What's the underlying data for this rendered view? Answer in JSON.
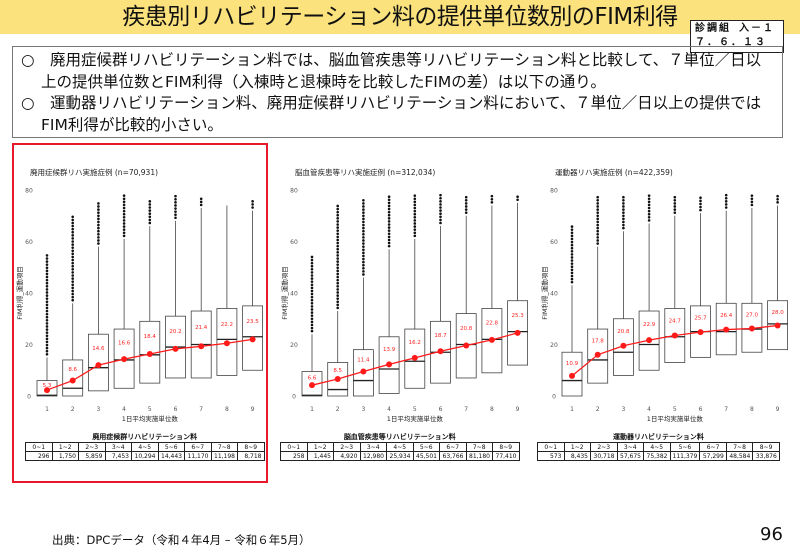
{
  "title": "疾患別リハビリテーション料の提供単位数別のFIM利得",
  "badge": {
    "line1": "診調組 入－１",
    "line2": "７．６．１３"
  },
  "bullets": [
    "○　廃用症候群リハビリテーション料では、脳血管疾患等リハビリテーション料と比較して、７単位／日以上の提供単位数とFIM利得（入棟時と退棟時を比較したFIMの差）は以下の通り。",
    "○　運動器リハビリテーション料、廃用症候群リハビリテーション料において、７単位／日以上の提供ではFIM利得が比較的小さい。"
  ],
  "highlight_color": "#e8182a",
  "mean_color": "#ff1a1a",
  "footer": "出典：DPCデータ（令和４年4月 – 令和６年5月）",
  "page_number": "96",
  "chart_data": [
    {
      "type": "box",
      "title": "廃用症候群リハ実施症例 (n=70,931)",
      "xlabel": "1日平均実施単位数",
      "ylabel": "FIM利得_運動項目",
      "ylim": [
        0,
        80
      ],
      "yticks": [
        0,
        20,
        40,
        60,
        80
      ],
      "categories": [
        "1",
        "2",
        "3",
        "4",
        "5",
        "6",
        "7",
        "8",
        "9"
      ],
      "boxes": [
        [
          0,
          0,
          0.3,
          6,
          15,
          55
        ],
        [
          0,
          0,
          3,
          14,
          36,
          70
        ],
        [
          2,
          2,
          11,
          24,
          58,
          75
        ],
        [
          3,
          3,
          14,
          26,
          61,
          78
        ],
        [
          5,
          5,
          16,
          29,
          66,
          76
        ],
        [
          7,
          7,
          19,
          31,
          68,
          78
        ],
        [
          7,
          7,
          20,
          33,
          73,
          77
        ],
        [
          8,
          8,
          22,
          34,
          74,
          74
        ],
        [
          10,
          10,
          23,
          35,
          72,
          76
        ]
      ],
      "box_fields": [
        "whisker_low",
        "q1",
        "median",
        "q3",
        "whisker_high",
        "outlier_max"
      ],
      "mean_points": [
        2.3,
        6,
        12,
        14.3,
        16.3,
        18.3,
        19.3,
        20.5,
        22
      ],
      "mean_labels": [
        "5.3",
        "8.6",
        "14.6",
        "16.6",
        "18.4",
        "20.2",
        "21.4",
        "22.2",
        "23.5"
      ],
      "table": {
        "title": "廃用症候群リハビリテーション料",
        "headers": [
          "0~1",
          "1~2",
          "2~3",
          "3~4",
          "4~5",
          "5~6",
          "6~7",
          "7~8",
          "8~9"
        ],
        "values": [
          "296",
          "1,750",
          "5,859",
          "7,453",
          "10,294",
          "14,443",
          "11,170",
          "11,198",
          "8,718"
        ]
      }
    },
    {
      "type": "box",
      "title": "脳血管疾患等リハ実施症例 (n=312,034)",
      "xlabel": "1日平均実施単位数",
      "ylabel": "FIM利得_運動項目",
      "ylim": [
        0,
        80
      ],
      "yticks": [
        0,
        20,
        40,
        60,
        80
      ],
      "categories": [
        "1",
        "2",
        "3",
        "4",
        "5",
        "6",
        "7",
        "8",
        "9"
      ],
      "boxes": [
        [
          0,
          0,
          0.3,
          9.5,
          24,
          55
        ],
        [
          0,
          0,
          2.5,
          13,
          33,
          74
        ],
        [
          0,
          0,
          6,
          18,
          46,
          76
        ],
        [
          1,
          1,
          10.5,
          23,
          57,
          78
        ],
        [
          3,
          3,
          13.5,
          26,
          61,
          78
        ],
        [
          5,
          5,
          17,
          29,
          66,
          78
        ],
        [
          7,
          7,
          20,
          32,
          70,
          78
        ],
        [
          9,
          9,
          22,
          34,
          74,
          78
        ],
        [
          12,
          12,
          25,
          37,
          75,
          78
        ]
      ],
      "box_fields": [
        "whisker_low",
        "q1",
        "median",
        "q3",
        "whisker_high",
        "outlier_max"
      ],
      "mean_points": [
        4.2,
        6.6,
        9.5,
        12.3,
        14.8,
        17.4,
        19.6,
        21.8,
        24.5
      ],
      "mean_labels": [
        "6.6",
        "8.5",
        "11.4",
        "13.9",
        "16.2",
        "18.7",
        "20.8",
        "22.8",
        "25.3"
      ],
      "table": {
        "title": "脳血管疾患等リハビリテーション料",
        "headers": [
          "0~1",
          "1~2",
          "2~3",
          "3~4",
          "4~5",
          "5~6",
          "6~7",
          "7~8",
          "8~9"
        ],
        "values": [
          "258",
          "1,445",
          "4,920",
          "12,980",
          "25,934",
          "45,501",
          "63,766",
          "81,180",
          "77,410"
        ]
      }
    },
    {
      "type": "box",
      "title": "運動器リハ実施症例 (n=422,359)",
      "xlabel": "1日平均実施単位数",
      "ylabel": "FIM利得_運動項目",
      "ylim": [
        0,
        80
      ],
      "yticks": [
        0,
        20,
        40,
        60,
        80
      ],
      "categories": [
        "1",
        "2",
        "3",
        "4",
        "5",
        "6",
        "7",
        "8",
        "9"
      ],
      "boxes": [
        [
          0,
          0,
          6,
          17,
          43,
          66
        ],
        [
          5,
          5,
          14,
          26,
          58,
          78
        ],
        [
          8,
          8,
          17,
          30,
          64,
          78
        ],
        [
          10,
          10,
          20,
          33,
          67,
          78
        ],
        [
          13,
          13,
          23,
          34,
          70,
          78
        ],
        [
          15,
          15,
          25,
          35,
          71,
          78
        ],
        [
          16,
          16,
          25,
          36,
          72,
          78
        ],
        [
          17,
          17,
          26,
          36,
          73,
          78
        ],
        [
          18,
          18,
          28,
          37,
          74,
          78
        ]
      ],
      "box_fields": [
        "whisker_low",
        "q1",
        "median",
        "q3",
        "whisker_high",
        "outlier_max"
      ],
      "mean_points": [
        7.8,
        16,
        19.5,
        21.7,
        23.5,
        24.8,
        25.8,
        26.2,
        27.4
      ],
      "mean_labels": [
        "10.9",
        "17.8",
        "20.8",
        "22.9",
        "24.7",
        "25.7",
        "26.4",
        "27.0",
        "28.0"
      ],
      "table": {
        "title": "運動器リハビリテーション料",
        "headers": [
          "0~1",
          "1~2",
          "2~3",
          "3~4",
          "4~5",
          "5~6",
          "6~7",
          "7~8",
          "8~9"
        ],
        "values": [
          "573",
          "8,435",
          "30,718",
          "57,675",
          "75,382",
          "111,379",
          "57,299",
          "48,584",
          "33,876"
        ]
      }
    }
  ]
}
